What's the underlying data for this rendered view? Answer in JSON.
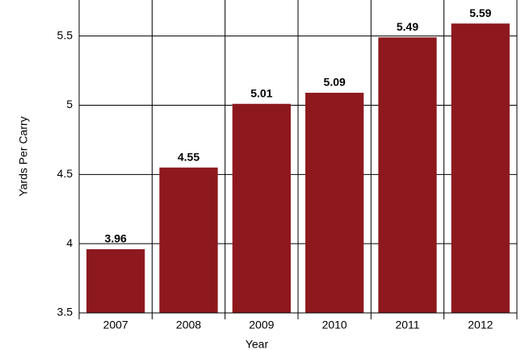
{
  "chart_data": {
    "type": "bar",
    "x_label": "Year",
    "y_label": "Yards Per Carry",
    "categories": [
      "2007",
      "2008",
      "2009",
      "2010",
      "2011",
      "2012"
    ],
    "values": [
      3.96,
      4.55,
      5.01,
      5.09,
      5.49,
      5.59
    ],
    "color": "#8d191e",
    "ylim": [
      3.5,
      5.76
    ],
    "yticks": [
      3.5,
      4,
      4.5,
      5,
      5.5
    ],
    "grid": true
  }
}
